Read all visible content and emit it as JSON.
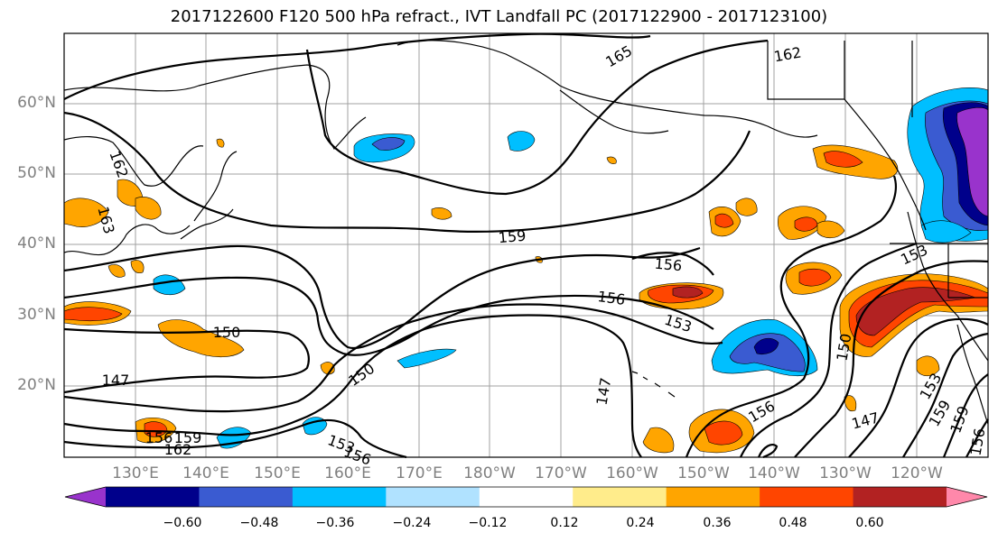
{
  "title": "2017122600 F120 500 hPa refract., IVT Landfall PC (2017122900 - 2017123100)",
  "map": {
    "lat_labels": [
      "60°N",
      "50°N",
      "40°N",
      "30°N",
      "20°N"
    ],
    "lon_labels": [
      "130°E",
      "140°E",
      "150°E",
      "160°E",
      "170°E",
      "180°W",
      "170°W",
      "160°W",
      "150°W",
      "140°W",
      "130°W",
      "120°W"
    ],
    "contour_labels": [
      "165",
      "162",
      "162",
      "163",
      "159",
      "156",
      "156",
      "153",
      "153",
      "150",
      "150",
      "150",
      "147",
      "147",
      "147",
      "156",
      "153",
      "159",
      "159",
      "156",
      "162",
      "156",
      "153",
      "156",
      "159"
    ]
  },
  "colorbar": {
    "ticks": [
      "−0.60",
      "−0.48",
      "−0.36",
      "−0.24",
      "−0.12",
      "0.12",
      "0.24",
      "0.36",
      "0.48",
      "0.60"
    ],
    "colors": [
      "#9933cc",
      "#00008b",
      "#3a5bd1",
      "#00bfff",
      "#b0e2ff",
      "#ffffff",
      "#ffec8b",
      "#ffa500",
      "#ff4500",
      "#b22222",
      "#ff88aa"
    ]
  }
}
